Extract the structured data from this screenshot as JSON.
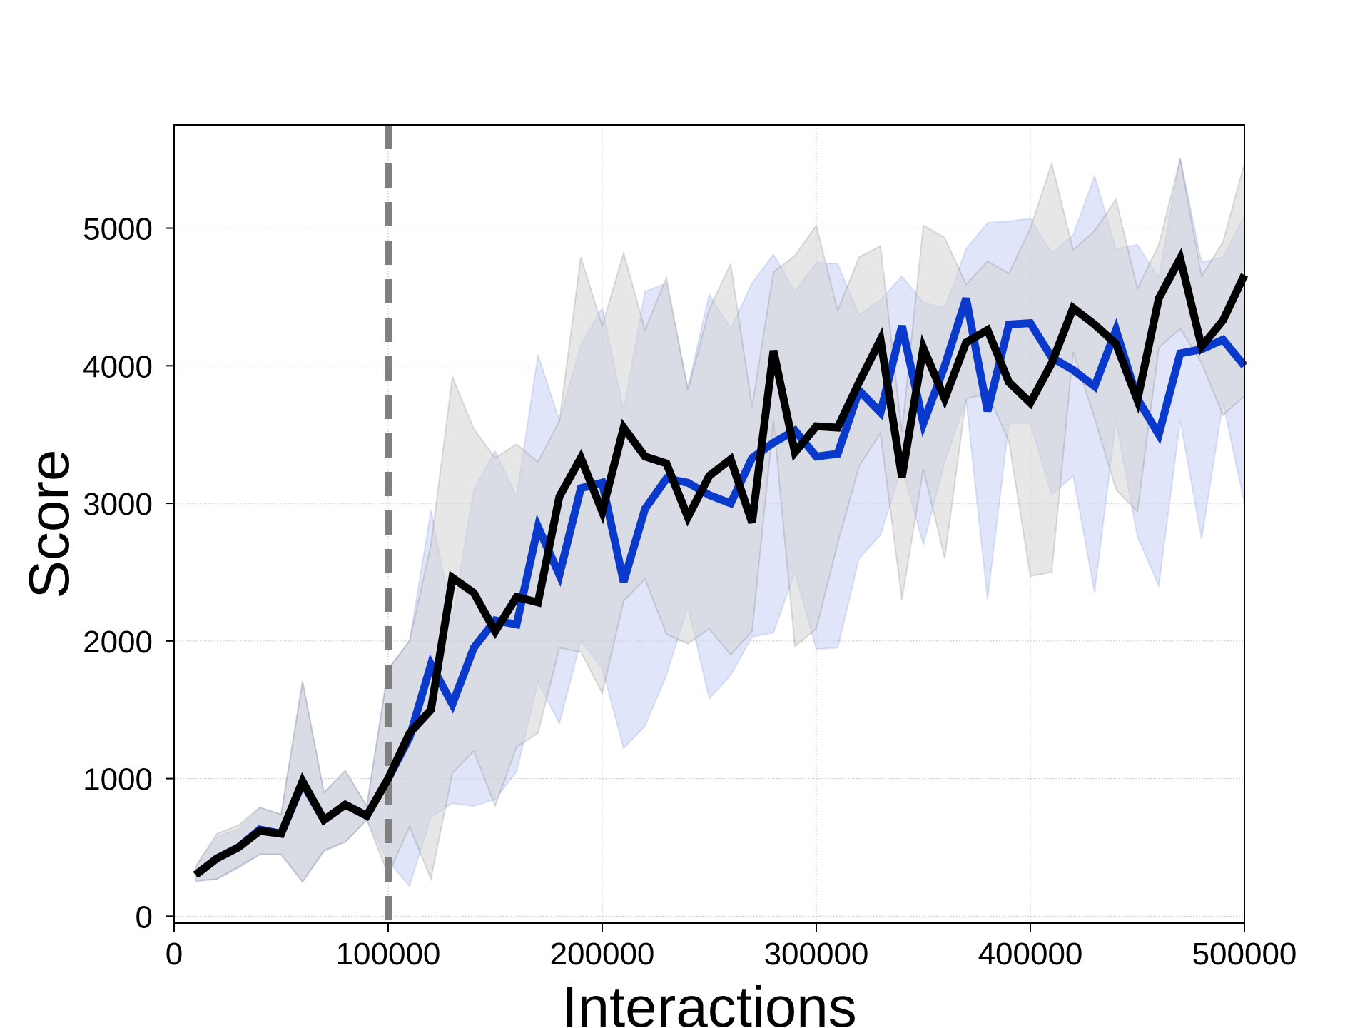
{
  "chart_data": {
    "type": "line",
    "title": "",
    "xlabel": "Interactions",
    "ylabel": "Score",
    "xlim": [
      0,
      500000
    ],
    "ylim": [
      -50,
      5750
    ],
    "xticks": [
      0,
      100000,
      200000,
      300000,
      400000,
      500000
    ],
    "yticks": [
      0,
      1000,
      2000,
      3000,
      4000,
      5000
    ],
    "xtick_labels": [
      "0",
      "100000",
      "200000",
      "300000",
      "400000",
      "500000"
    ],
    "ytick_labels": [
      "0",
      "1000",
      "2000",
      "3000",
      "4000",
      "5000"
    ],
    "grid": true,
    "legend": "none",
    "vline": {
      "x": 100000,
      "style": "dashed",
      "color": "#808080"
    },
    "x": [
      10000,
      20000,
      30000,
      40000,
      50000,
      60000,
      70000,
      80000,
      90000,
      100000,
      110000,
      120000,
      130000,
      140000,
      150000,
      160000,
      170000,
      180000,
      190000,
      200000,
      210000,
      220000,
      230000,
      240000,
      250000,
      260000,
      270000,
      280000,
      290000,
      300000,
      310000,
      320000,
      330000,
      340000,
      350000,
      360000,
      370000,
      380000,
      390000,
      400000,
      410000,
      420000,
      430000,
      440000,
      450000,
      460000,
      470000,
      480000,
      490000,
      500000
    ],
    "series": [
      {
        "color": "#0a3acc",
        "band_color": "#c8d0f5",
        "values": [
          300,
          420,
          500,
          630,
          600,
          970,
          700,
          810,
          730,
          1000,
          1300,
          1830,
          1540,
          1950,
          2150,
          2120,
          2830,
          2480,
          3110,
          3150,
          2430,
          2960,
          3180,
          3150,
          3060,
          3000,
          3330,
          3440,
          3530,
          3340,
          3360,
          3820,
          3660,
          4290,
          3580,
          4000,
          4490,
          3670,
          4300,
          4310,
          4060,
          3970,
          3850,
          4260,
          3760,
          3500,
          4090,
          4120,
          4190,
          4000
        ],
        "lower": [
          250,
          270,
          350,
          450,
          450,
          250,
          470,
          540,
          700,
          400,
          220,
          720,
          820,
          800,
          850,
          1050,
          1700,
          1400,
          2000,
          1800,
          1220,
          1380,
          1750,
          2250,
          1580,
          1750,
          2030,
          2060,
          2500,
          1940,
          1950,
          2600,
          2770,
          3260,
          2700,
          3300,
          3750,
          2300,
          3580,
          3580,
          3060,
          3200,
          2350,
          3600,
          2760,
          2400,
          3600,
          2740,
          3730,
          3000
        ],
        "upper": [
          360,
          580,
          630,
          790,
          740,
          1700,
          900,
          1050,
          800,
          1800,
          2000,
          2950,
          2160,
          3100,
          3380,
          3050,
          4080,
          3600,
          4150,
          4420,
          3680,
          4540,
          4600,
          3840,
          4520,
          4270,
          4600,
          4810,
          4540,
          4750,
          4740,
          4370,
          4480,
          4650,
          4460,
          4420,
          4850,
          5040,
          5050,
          5070,
          4820,
          4950,
          5380,
          4850,
          4880,
          4640,
          5510,
          4750,
          4790,
          5090
        ]
      },
      {
        "color": "#000000",
        "band_color": "#d3d3d3",
        "values": [
          300,
          420,
          500,
          620,
          600,
          980,
          700,
          810,
          730,
          1000,
          1330,
          1500,
          2460,
          2350,
          2070,
          2320,
          2280,
          3050,
          3330,
          2940,
          3550,
          3340,
          3290,
          2900,
          3200,
          3320,
          2860,
          4110,
          3370,
          3560,
          3550,
          3880,
          4190,
          3190,
          4130,
          3760,
          4170,
          4260,
          3880,
          3730,
          4020,
          4420,
          4300,
          4160,
          3750,
          4490,
          4780,
          4140,
          4330,
          4660
        ],
        "lower": [
          260,
          270,
          360,
          450,
          450,
          250,
          480,
          540,
          700,
          300,
          650,
          270,
          1040,
          1200,
          800,
          1230,
          1330,
          1950,
          1920,
          1620,
          2290,
          2450,
          2050,
          1980,
          2090,
          1900,
          2070,
          3600,
          1960,
          2090,
          2710,
          3270,
          3510,
          2300,
          3250,
          2600,
          3760,
          3800,
          3450,
          2470,
          2500,
          4100,
          3620,
          3100,
          2940,
          4130,
          4270,
          4020,
          3640,
          3780
        ],
        "upper": [
          360,
          600,
          660,
          790,
          740,
          1710,
          900,
          1060,
          800,
          1790,
          2000,
          2700,
          3920,
          3540,
          3330,
          3430,
          3300,
          3600,
          4790,
          4290,
          4820,
          4260,
          4640,
          3820,
          4410,
          4740,
          3700,
          4680,
          4800,
          5020,
          4400,
          4790,
          4870,
          3520,
          5020,
          4930,
          4590,
          4760,
          4670,
          5000,
          5470,
          4840,
          4980,
          5210,
          4560,
          4880,
          5500,
          4650,
          4900,
          5470
        ]
      }
    ]
  }
}
